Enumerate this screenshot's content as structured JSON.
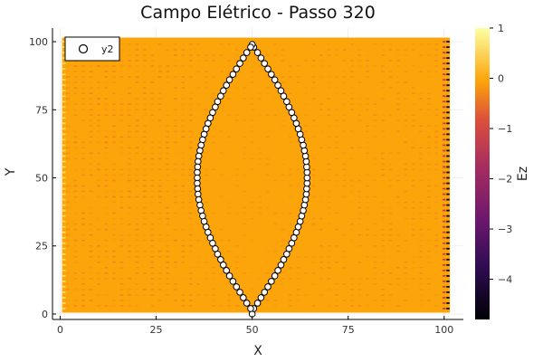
{
  "chart_data": {
    "type": "heatmap",
    "title": "Campo Elétrico - Passo 320",
    "xlabel": "X",
    "ylabel": "Y",
    "xlim": [
      -2,
      105
    ],
    "ylim": [
      -2,
      105
    ],
    "x_ticks": [
      0,
      25,
      50,
      75,
      100
    ],
    "y_ticks": [
      0,
      25,
      50,
      75,
      100
    ],
    "grid": true,
    "colorbar": {
      "label": "Ez",
      "range": [
        -4.8,
        1
      ],
      "ticks": [
        1,
        0,
        -1,
        -2,
        -3,
        -4
      ],
      "tick_labels": [
        "1",
        "0",
        "−1",
        "−2",
        "−3",
        "−4"
      ],
      "colormap": [
        "#000004",
        "#420a68",
        "#932667",
        "#dd513a",
        "#fca50a",
        "#fcffa4"
      ]
    },
    "heatmap": {
      "x_range": [
        1,
        101
      ],
      "y_range": [
        1,
        101
      ],
      "background_value": 0.0,
      "description_values": {
        "left_column_x1": 0.6,
        "right_column_x101": -4.8,
        "column_x100": -1.2,
        "checkered_min": -0.3
      }
    },
    "series": [
      {
        "name": "y2",
        "marker": "circle",
        "marker_fill": "#ffffff",
        "marker_stroke": "#000000",
        "x": [
          50,
          50.4,
          51.4,
          52.3,
          53.2,
          54.1,
          55.0,
          55.9,
          56.7,
          57.5,
          58.2,
          59.0,
          59.6,
          60.3,
          60.9,
          61.5,
          62.0,
          62.5,
          62.9,
          63.3,
          63.6,
          63.9,
          64.1,
          64.2,
          64.3,
          64.3,
          64.3,
          64.2,
          64.1,
          63.9,
          63.6,
          63.3,
          62.9,
          62.5,
          62.0,
          61.5,
          60.9,
          60.3,
          59.6,
          59.0,
          58.2,
          57.5,
          56.7,
          55.9,
          55.0,
          54.1,
          53.2,
          52.3,
          51.4,
          50.4,
          50,
          49.6,
          48.6,
          47.7,
          46.8,
          45.9,
          45.0,
          44.1,
          43.3,
          42.5,
          41.8,
          41.0,
          40.4,
          39.7,
          39.1,
          38.5,
          38.0,
          37.5,
          37.1,
          36.7,
          36.4,
          36.1,
          35.9,
          35.8,
          35.7,
          35.7,
          35.7,
          35.8,
          35.9,
          36.1,
          36.4,
          36.7,
          37.1,
          37.5,
          38.0,
          38.5,
          39.1,
          39.7,
          40.4,
          41.0,
          41.8,
          42.5,
          43.3,
          44.1,
          45.0,
          45.9,
          46.8,
          47.7,
          48.6,
          49.6
        ],
        "y": [
          0,
          2,
          4,
          6,
          8,
          10,
          12,
          14,
          16,
          18,
          20,
          22,
          24,
          26,
          28,
          30,
          32,
          34,
          36,
          38,
          40,
          42,
          44,
          46,
          48,
          50,
          52,
          54,
          56,
          58,
          60,
          62,
          64,
          66,
          68,
          70,
          72,
          74,
          76,
          78,
          80,
          82,
          84,
          86,
          88,
          90,
          92,
          94,
          96,
          98,
          99,
          98,
          96,
          94,
          92,
          90,
          88,
          86,
          84,
          82,
          80,
          78,
          76,
          74,
          72,
          70,
          68,
          66,
          64,
          62,
          60,
          58,
          56,
          54,
          52,
          50,
          48,
          46,
          44,
          42,
          40,
          38,
          36,
          34,
          32,
          30,
          28,
          26,
          24,
          22,
          20,
          18,
          16,
          14,
          12,
          10,
          8,
          6,
          4,
          2
        ]
      }
    ],
    "legend": {
      "placement": "top-left",
      "entries": [
        "y2"
      ]
    }
  }
}
